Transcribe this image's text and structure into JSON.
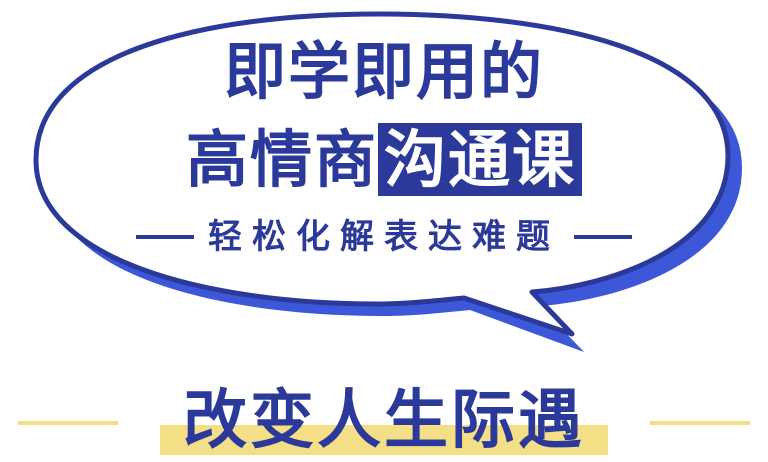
{
  "headline": {
    "line1": "即学即用的",
    "line2_plain": "高情商",
    "line2_highlight": "沟通课",
    "tagline": "轻松化解表达难题"
  },
  "bottom": {
    "title": "改变人生际遇"
  },
  "colors": {
    "primary_blue": "#2b3a9a",
    "bubble_shadow": "#3c58d8",
    "highlight_yellow": "#f5df86",
    "background": "#ffffff"
  }
}
